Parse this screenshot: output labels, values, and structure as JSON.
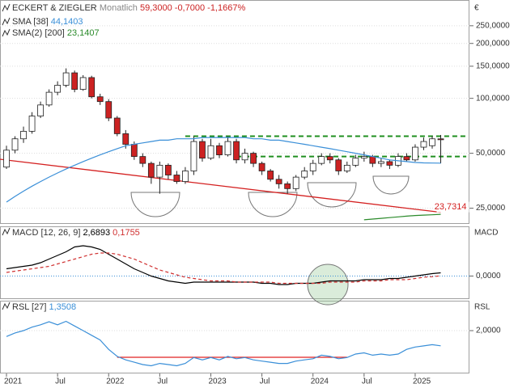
{
  "chart_data": [
    {
      "type": "candlestick",
      "title": "ECKERT & ZIEGLER",
      "subtitle": "Monatlich",
      "quote": {
        "last": "59,3000",
        "change": "-0,7000",
        "change_pct": "-1,1667%"
      },
      "currency": "€",
      "log": true,
      "x": [
        "2021-01",
        "2021-02",
        "2021-03",
        "2021-04",
        "2021-05",
        "2021-06",
        "2021-07",
        "2021-08",
        "2021-09",
        "2021-10",
        "2021-11",
        "2021-12",
        "2022-01",
        "2022-02",
        "2022-03",
        "2022-04",
        "2022-05",
        "2022-06",
        "2022-07",
        "2022-08",
        "2022-09",
        "2022-10",
        "2022-11",
        "2022-12",
        "2023-01",
        "2023-02",
        "2023-03",
        "2023-04",
        "2023-05",
        "2023-06",
        "2023-07",
        "2023-08",
        "2023-09",
        "2023-10",
        "2023-11",
        "2023-12",
        "2024-01",
        "2024-02",
        "2024-03",
        "2024-04",
        "2024-05",
        "2024-06",
        "2024-07",
        "2024-08",
        "2024-09",
        "2024-10",
        "2024-11",
        "2024-12",
        "2025-01",
        "2025-02",
        "2025-03",
        "2025-04"
      ],
      "open": [
        42,
        52,
        60,
        66,
        80,
        92,
        108,
        118,
        138,
        112,
        130,
        102,
        96,
        78,
        64,
        56,
        48,
        44,
        37,
        43,
        38,
        35,
        40,
        58,
        47,
        55,
        49,
        58,
        46,
        50,
        44,
        40,
        36,
        34,
        32,
        37,
        40,
        44,
        48,
        46,
        40,
        43,
        47,
        48,
        44,
        45,
        43,
        48,
        46,
        54,
        55,
        60
      ],
      "high": [
        55,
        62,
        70,
        84,
        96,
        112,
        124,
        146,
        142,
        134,
        133,
        106,
        99,
        80,
        67,
        58,
        50,
        45,
        45,
        44,
        40,
        42,
        62,
        60,
        60,
        57,
        62,
        60,
        53,
        51,
        45,
        41,
        38,
        35,
        38,
        42,
        46,
        50,
        50,
        47,
        45,
        49,
        51,
        49,
        47,
        46,
        50,
        50,
        56,
        61,
        62,
        63
      ],
      "low": [
        41,
        50,
        57,
        64,
        78,
        90,
        104,
        115,
        108,
        110,
        100,
        92,
        75,
        62,
        53,
        46,
        42,
        34,
        30,
        36,
        34,
        34,
        38,
        45,
        46,
        47,
        48,
        44,
        44,
        42,
        38,
        35,
        32,
        30,
        31,
        36,
        38,
        43,
        44,
        38,
        39,
        42,
        45,
        42,
        42,
        41,
        42,
        45,
        45,
        52,
        53,
        44
      ],
      "close": [
        52,
        60,
        66,
        80,
        92,
        108,
        118,
        138,
        112,
        130,
        102,
        96,
        78,
        64,
        56,
        48,
        44,
        37,
        43,
        38,
        35,
        40,
        58,
        47,
        55,
        49,
        58,
        46,
        50,
        44,
        40,
        36,
        34,
        32,
        37,
        40,
        44,
        48,
        46,
        40,
        43,
        47,
        48,
        44,
        45,
        43,
        48,
        46,
        54,
        58,
        60,
        59.3
      ],
      "up_color": "#ffffff",
      "down_color": "#cc2222",
      "series": [
        {
          "name": "SMA [38]",
          "legend_value": "44,1403",
          "color": "#3a8fd8",
          "values": [
            27,
            29,
            31,
            33,
            35,
            37,
            39,
            41,
            43,
            45,
            47,
            49,
            51,
            53,
            55,
            56,
            57,
            58,
            59,
            59,
            60,
            60,
            60,
            61,
            61,
            61,
            61,
            61,
            61,
            60,
            60,
            59,
            59,
            58,
            57,
            56,
            55,
            54,
            53,
            52,
            51,
            50,
            49,
            48,
            47,
            46,
            45.5,
            45,
            44.5,
            44.3,
            44.2,
            44.1403
          ]
        },
        {
          "name": "SMA(2) [200]",
          "legend_value": "23,1407",
          "color": "#2a8a2a",
          "values": [
            null,
            null,
            null,
            null,
            null,
            null,
            null,
            null,
            null,
            null,
            null,
            null,
            null,
            null,
            null,
            null,
            null,
            null,
            null,
            null,
            null,
            null,
            null,
            null,
            null,
            null,
            null,
            null,
            null,
            null,
            null,
            null,
            null,
            null,
            null,
            null,
            null,
            null,
            null,
            null,
            null,
            null,
            21.6,
            21.8,
            22.0,
            22.2,
            22.4,
            22.6,
            22.8,
            22.9,
            23.0,
            23.1407
          ]
        }
      ],
      "lines": [
        {
          "x": [
            "2020-12",
            "2025-04"
          ],
          "values": [
            46.5,
            23.7314
          ],
          "color": "#d42020",
          "dash": false,
          "label": "23,7314"
        },
        {
          "x": [
            "2022-10",
            "2025-07"
          ],
          "values": [
            62,
            62
          ],
          "color": "#1f8f1f",
          "dash": true
        },
        {
          "x": [
            "2023-04",
            "2025-07"
          ],
          "values": [
            48,
            48
          ],
          "color": "#1f8f1f",
          "dash": true
        }
      ],
      "ylim": [
        20.5,
        346
      ],
      "yticks": [
        {
          "value": 25,
          "label": "25,0000"
        },
        {
          "value": 50,
          "label": "50,0000"
        },
        {
          "value": 100,
          "label": "100,0000"
        },
        {
          "value": 150,
          "label": "150,0000"
        },
        {
          "value": 200,
          "label": "200,0000"
        },
        {
          "value": 250,
          "label": "250,0000"
        }
      ]
    },
    {
      "type": "line",
      "title": "MACD [12, 26, 9]",
      "axis_label": "MACD",
      "x": [
        "2021-01",
        "2021-02",
        "2021-03",
        "2021-04",
        "2021-05",
        "2021-06",
        "2021-07",
        "2021-08",
        "2021-09",
        "2021-10",
        "2021-11",
        "2021-12",
        "2022-01",
        "2022-02",
        "2022-03",
        "2022-04",
        "2022-05",
        "2022-06",
        "2022-07",
        "2022-08",
        "2022-09",
        "2022-10",
        "2022-11",
        "2022-12",
        "2023-01",
        "2023-02",
        "2023-03",
        "2023-04",
        "2023-05",
        "2023-06",
        "2023-07",
        "2023-08",
        "2023-09",
        "2023-10",
        "2023-11",
        "2023-12",
        "2024-01",
        "2024-02",
        "2024-03",
        "2024-04",
        "2024-05",
        "2024-06",
        "2024-07",
        "2024-08",
        "2024-09",
        "2024-10",
        "2024-11",
        "2024-12",
        "2025-01",
        "2025-02",
        "2025-03",
        "2025-04"
      ],
      "series": [
        {
          "legend_value": "2,6893",
          "color": "#000000",
          "dash": false,
          "values": [
            6,
            7,
            8,
            9,
            11,
            14,
            17,
            20,
            24,
            25,
            24,
            22,
            18,
            14,
            10,
            6,
            3,
            0,
            -2,
            -4,
            -5,
            -6,
            -5,
            -5,
            -5,
            -5,
            -5,
            -5,
            -5,
            -5,
            -6,
            -6,
            -7,
            -7,
            -6,
            -6,
            -6,
            -5,
            -4,
            -4,
            -4,
            -4,
            -3,
            -3,
            -3,
            -2,
            -2,
            -1,
            0,
            1,
            2,
            2.6893
          ]
        },
        {
          "legend_value": "0,1755",
          "color": "#d03030",
          "dash": true,
          "values": [
            3,
            4,
            5,
            6,
            7,
            8,
            10,
            12,
            14,
            16,
            18,
            19,
            19,
            18,
            16,
            14,
            11,
            8,
            5,
            3,
            1,
            -1,
            -2,
            -3,
            -4,
            -4,
            -4,
            -5,
            -5,
            -5,
            -5,
            -5,
            -6,
            -6,
            -6,
            -6,
            -6,
            -6,
            -5,
            -5,
            -5,
            -5,
            -4,
            -4,
            -4,
            -3,
            -3,
            -3,
            -2,
            -1,
            -0.5,
            0.1755
          ]
        }
      ],
      "ylim": [
        -19,
        41
      ],
      "yticks": [
        {
          "value": 0,
          "label": "0,0000"
        }
      ]
    },
    {
      "type": "line",
      "title": "RSL [27]",
      "axis_label": "RSL",
      "x": [
        "2021-01",
        "2021-02",
        "2021-03",
        "2021-04",
        "2021-05",
        "2021-06",
        "2021-07",
        "2021-08",
        "2021-09",
        "2021-10",
        "2021-11",
        "2021-12",
        "2022-01",
        "2022-02",
        "2022-03",
        "2022-04",
        "2022-05",
        "2022-06",
        "2022-07",
        "2022-08",
        "2022-09",
        "2022-10",
        "2022-11",
        "2022-12",
        "2023-01",
        "2023-02",
        "2023-03",
        "2023-04",
        "2023-05",
        "2023-06",
        "2023-07",
        "2023-08",
        "2023-09",
        "2023-10",
        "2023-11",
        "2023-12",
        "2024-01",
        "2024-02",
        "2024-03",
        "2024-04",
        "2024-05",
        "2024-06",
        "2024-07",
        "2024-08",
        "2024-09",
        "2024-10",
        "2024-11",
        "2024-12",
        "2025-01",
        "2025-02",
        "2025-03",
        "2025-04"
      ],
      "series": [
        {
          "legend_value": "1,3508",
          "color": "#3a8fd8",
          "dash": false,
          "values": [
            1.75,
            1.9,
            2.0,
            2.15,
            2.25,
            2.38,
            2.25,
            2.4,
            2.2,
            2.0,
            1.8,
            1.6,
            1.2,
            0.9,
            0.75,
            0.65,
            0.55,
            0.5,
            0.6,
            0.55,
            0.5,
            0.6,
            0.85,
            0.75,
            0.85,
            0.75,
            0.9,
            0.8,
            0.85,
            0.75,
            0.7,
            0.65,
            0.6,
            0.6,
            0.7,
            0.75,
            0.8,
            0.95,
            0.9,
            0.8,
            0.85,
            1.0,
            1.05,
            0.95,
            1.0,
            0.95,
            1.0,
            1.2,
            1.3,
            1.35,
            1.4,
            1.3508
          ]
        }
      ],
      "lines": [
        {
          "x": [
            "2022-02",
            "2024-05"
          ],
          "values": [
            0.86,
            0.86
          ],
          "color": "#e02020",
          "dash": false
        }
      ],
      "ylim": [
        0.17,
        3.28
      ],
      "yticks": [
        {
          "value": 2,
          "label": "2,0000"
        }
      ],
      "xticks": [
        {
          "value": "2021-01",
          "label": "2021"
        },
        {
          "value": "2021-07",
          "label": "Jul"
        },
        {
          "value": "2022-01",
          "label": "2022"
        },
        {
          "value": "2022-07",
          "label": "Jul"
        },
        {
          "value": "2023-01",
          "label": "2023"
        },
        {
          "value": "2023-07",
          "label": "Jul"
        },
        {
          "value": "2024-01",
          "label": "2024"
        },
        {
          "value": "2024-07",
          "label": "Jul"
        },
        {
          "value": "2025-01",
          "label": "2025"
        }
      ]
    }
  ]
}
